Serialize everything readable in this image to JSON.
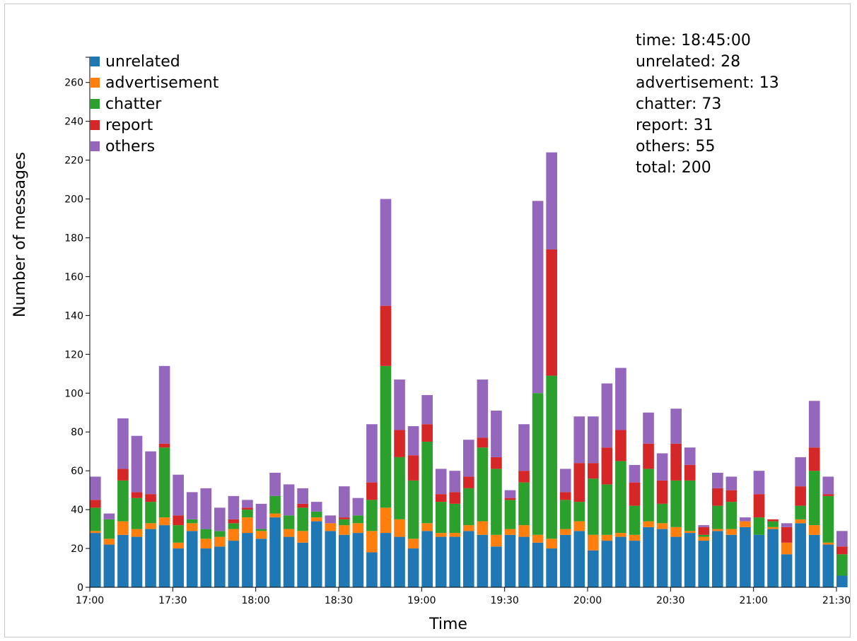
{
  "chart_data": {
    "type": "bar",
    "stacked": true,
    "xlabel": "Time",
    "ylabel": "Number of messages",
    "ylim": [
      0,
      273
    ],
    "x_ticks": [
      "17:00",
      "17:30",
      "18:00",
      "18:30",
      "19:00",
      "19:30",
      "20:00",
      "20:30",
      "21:00",
      "21:30"
    ],
    "y_ticks": [
      0,
      20,
      40,
      60,
      80,
      100,
      120,
      140,
      160,
      180,
      200,
      220,
      240,
      260
    ],
    "legend_position": "top-left",
    "colors": {
      "unrelated": "#1f77b4",
      "advertisement": "#ff7f0e",
      "chatter": "#2ca02c",
      "report": "#d62728",
      "others": "#9467bd"
    },
    "categories": [
      "17:00",
      "17:05",
      "17:10",
      "17:15",
      "17:20",
      "17:25",
      "17:30",
      "17:35",
      "17:40",
      "17:45",
      "17:50",
      "17:55",
      "18:00",
      "18:05",
      "18:10",
      "18:15",
      "18:20",
      "18:25",
      "18:30",
      "18:35",
      "18:40",
      "18:45",
      "18:50",
      "18:55",
      "19:00",
      "19:05",
      "19:10",
      "19:15",
      "19:20",
      "19:25",
      "19:30",
      "19:35",
      "19:40",
      "19:45",
      "19:50",
      "19:55",
      "20:00",
      "20:05",
      "20:10",
      "20:15",
      "20:20",
      "20:25",
      "20:30",
      "20:35",
      "20:40",
      "20:45",
      "20:50",
      "20:55",
      "21:00",
      "21:05",
      "21:10",
      "21:15",
      "21:20",
      "21:25",
      "21:30"
    ],
    "series": [
      {
        "name": "unrelated",
        "values": [
          28,
          22,
          27,
          26,
          30,
          32,
          20,
          29,
          20,
          21,
          24,
          28,
          25,
          36,
          26,
          23,
          34,
          29,
          27,
          28,
          18,
          28,
          26,
          20,
          29,
          26,
          26,
          29,
          27,
          21,
          27,
          26,
          23,
          20,
          27,
          29,
          19,
          24,
          26,
          24,
          31,
          30,
          26,
          28,
          24,
          29,
          27,
          31,
          27,
          30,
          17,
          33,
          27,
          22,
          6
        ]
      },
      {
        "name": "advertisement",
        "values": [
          1,
          3,
          7,
          4,
          3,
          4,
          3,
          4,
          5,
          5,
          6,
          8,
          4,
          2,
          4,
          6,
          2,
          4,
          5,
          5,
          11,
          13,
          9,
          5,
          4,
          2,
          2,
          3,
          7,
          6,
          3,
          6,
          4,
          5,
          3,
          5,
          8,
          3,
          2,
          3,
          3,
          3,
          5,
          1,
          2,
          1,
          3,
          3,
          0,
          1,
          6,
          2,
          5,
          1,
          0
        ]
      },
      {
        "name": "chatter",
        "values": [
          12,
          10,
          21,
          16,
          11,
          36,
          9,
          2,
          5,
          3,
          3,
          4,
          1,
          9,
          7,
          12,
          3,
          0,
          3,
          4,
          16,
          73,
          32,
          30,
          42,
          16,
          15,
          19,
          38,
          34,
          15,
          22,
          73,
          84,
          15,
          10,
          29,
          26,
          37,
          15,
          27,
          10,
          24,
          26,
          1,
          12,
          14,
          0,
          9,
          3,
          0,
          7,
          28,
          24,
          11
        ]
      },
      {
        "name": "report",
        "values": [
          4,
          0,
          6,
          3,
          4,
          2,
          5,
          0,
          0,
          0,
          2,
          1,
          0,
          0,
          0,
          2,
          0,
          0,
          1,
          0,
          9,
          31,
          14,
          13,
          9,
          4,
          6,
          6,
          5,
          6,
          1,
          6,
          0,
          65,
          4,
          20,
          8,
          19,
          16,
          12,
          13,
          12,
          19,
          8,
          4,
          9,
          6,
          0,
          12,
          1,
          8,
          10,
          12,
          1,
          4
        ]
      },
      {
        "name": "others",
        "values": [
          12,
          3,
          26,
          29,
          22,
          40,
          21,
          14,
          21,
          12,
          12,
          4,
          13,
          12,
          16,
          8,
          5,
          4,
          16,
          9,
          30,
          55,
          26,
          15,
          15,
          13,
          11,
          19,
          30,
          24,
          4,
          24,
          99,
          50,
          12,
          24,
          24,
          33,
          32,
          9,
          16,
          14,
          18,
          9,
          1,
          8,
          7,
          2,
          12,
          0,
          2,
          15,
          24,
          9,
          8
        ]
      }
    ],
    "info_box": {
      "time": "18:45:00",
      "unrelated": 28,
      "advertisement": 13,
      "chatter": 73,
      "report": 31,
      "others": 55,
      "total": 200
    }
  }
}
